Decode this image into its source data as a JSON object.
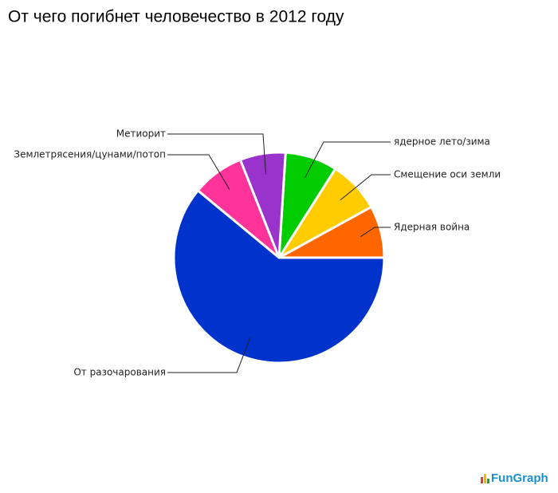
{
  "chart_data": {
    "type": "pie",
    "title": "От чего погибнет человечество в 2012 году",
    "categories": [
      "Ядерная война",
      "Смещение оси земли",
      "ядерное лето/зима",
      "Метиорит",
      "Землетрясения/цунами/потоп",
      "От разочарования"
    ],
    "values": [
      8,
      8,
      8,
      7,
      8,
      61
    ],
    "colors": [
      "#ff6600",
      "#ffcc00",
      "#00cc00",
      "#9933cc",
      "#ff3399",
      "#0033cc"
    ],
    "watermark": "FunGraph"
  }
}
